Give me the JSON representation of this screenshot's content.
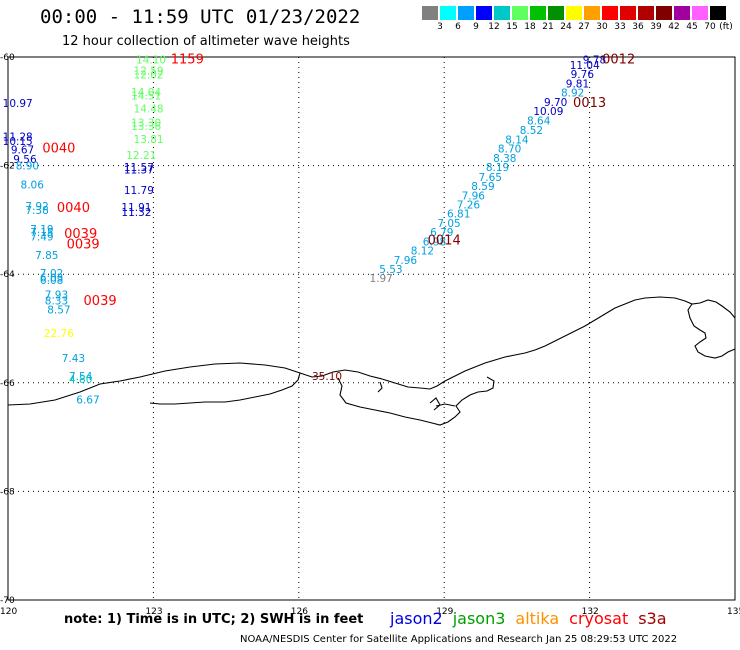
{
  "title": "00:00 - 11:59 UTC 01/23/2022",
  "subtitle": "12 hour collection of altimeter wave heights",
  "legend": {
    "unit": "(ft)",
    "bins": [
      {
        "color": "#808080",
        "label": ""
      },
      {
        "color": "#00ffff",
        "label": "3"
      },
      {
        "color": "#00a0ff",
        "label": "6"
      },
      {
        "color": "#0000ff",
        "label": "9"
      },
      {
        "color": "#00c8c8",
        "label": "12"
      },
      {
        "color": "#60ff60",
        "label": "15"
      },
      {
        "color": "#00c000",
        "label": "18"
      },
      {
        "color": "#009000",
        "label": "21"
      },
      {
        "color": "#ffff00",
        "label": "24"
      },
      {
        "color": "#ffa000",
        "label": "27"
      },
      {
        "color": "#ff0000",
        "label": "30"
      },
      {
        "color": "#e00000",
        "label": "33"
      },
      {
        "color": "#b00000",
        "label": "36"
      },
      {
        "color": "#800000",
        "label": "39"
      },
      {
        "color": "#a000a0",
        "label": "42"
      },
      {
        "color": "#ff60ff",
        "label": "45"
      },
      {
        "color": "#000000",
        "label": "70"
      }
    ]
  },
  "axes": {
    "lon_ticks": [
      "120",
      "123",
      "126",
      "129",
      "132",
      "135"
    ],
    "lat_ticks": [
      "-60",
      "-62",
      "-64",
      "-66",
      "-68",
      "-70"
    ]
  },
  "coast_label": "35.10",
  "tracks": [
    {
      "name": "left-track",
      "points": [
        {
          "t": "10.97",
          "lon": 120.2,
          "lat": -60.92,
          "c": "#0000c8"
        },
        {
          "t": "11.28",
          "lon": 120.2,
          "lat": -61.54,
          "c": "#0000c8"
        },
        {
          "t": "10.15",
          "lon": 120.2,
          "lat": -61.62,
          "c": "#0000c8"
        },
        {
          "t": "9.67",
          "lon": 120.3,
          "lat": -61.78,
          "c": "#0000c8"
        },
        {
          "t": "9.56",
          "lon": 120.35,
          "lat": -61.95,
          "c": "#0000c8"
        },
        {
          "t": "8.90",
          "lon": 120.4,
          "lat": -62.07,
          "c": "#00a0e0"
        },
        {
          "t": "8.06",
          "lon": 120.5,
          "lat": -62.42,
          "c": "#00a0e0"
        },
        {
          "t": "7.92",
          "lon": 120.6,
          "lat": -62.82,
          "c": "#00a0e0"
        },
        {
          "t": "7.38",
          "lon": 120.6,
          "lat": -62.89,
          "c": "#00a0e0"
        },
        {
          "t": "7.19",
          "lon": 120.7,
          "lat": -63.24,
          "c": "#00a0e0"
        },
        {
          "t": "7.15",
          "lon": 120.7,
          "lat": -63.3,
          "c": "#00a0e0"
        },
        {
          "t": "7.49",
          "lon": 120.7,
          "lat": -63.38,
          "c": "#00a0e0"
        },
        {
          "t": "7.85",
          "lon": 120.8,
          "lat": -63.72,
          "c": "#00a0e0"
        },
        {
          "t": "7.02",
          "lon": 120.9,
          "lat": -64.05,
          "c": "#00a0e0"
        },
        {
          "t": "6.03",
          "lon": 120.9,
          "lat": -64.13,
          "c": "#00a0e0"
        },
        {
          "t": "6.08",
          "lon": 120.9,
          "lat": -64.18,
          "c": "#00a0e0"
        },
        {
          "t": "7.93",
          "lon": 121.0,
          "lat": -64.45,
          "c": "#00a0e0"
        },
        {
          "t": "8.33",
          "lon": 121.0,
          "lat": -64.56,
          "c": "#00a0e0"
        },
        {
          "t": "8.57",
          "lon": 121.05,
          "lat": -64.72,
          "c": "#00a0e0"
        },
        {
          "t": "22.76",
          "lon": 121.05,
          "lat": -65.16,
          "c": "#ffff00"
        },
        {
          "t": "7.43",
          "lon": 121.35,
          "lat": -65.62,
          "c": "#00a0e0"
        },
        {
          "t": "7.54",
          "lon": 121.5,
          "lat": -65.95,
          "c": "#00a0e0"
        },
        {
          "t": "4.80",
          "lon": 121.5,
          "lat": -66.0,
          "c": "#00c8c8"
        },
        {
          "t": "6.67",
          "lon": 121.65,
          "lat": -66.38,
          "c": "#00a0e0"
        }
      ]
    },
    {
      "name": "center-left-track",
      "points": [
        {
          "t": "14.10",
          "lon": 122.95,
          "lat": -60.12,
          "c": "#60ff60"
        },
        {
          "t": "12.59",
          "lon": 122.9,
          "lat": -60.32,
          "c": "#60ff60"
        },
        {
          "t": "12.02",
          "lon": 122.9,
          "lat": -60.4,
          "c": "#60ff60"
        },
        {
          "t": "14.04",
          "lon": 122.85,
          "lat": -60.72,
          "c": "#60ff60"
        },
        {
          "t": "14.51",
          "lon": 122.85,
          "lat": -60.78,
          "c": "#60ff60"
        },
        {
          "t": "14.48",
          "lon": 122.9,
          "lat": -61.02,
          "c": "#60ff60"
        },
        {
          "t": "13.30",
          "lon": 122.85,
          "lat": -61.28,
          "c": "#60ff60"
        },
        {
          "t": "13.36",
          "lon": 122.85,
          "lat": -61.34,
          "c": "#60ff60"
        },
        {
          "t": "13.81",
          "lon": 122.9,
          "lat": -61.58,
          "c": "#60ff60"
        },
        {
          "t": "12.21",
          "lon": 122.75,
          "lat": -61.88,
          "c": "#60ff60"
        },
        {
          "t": "11.57",
          "lon": 122.7,
          "lat": -62.1,
          "c": "#0000c8"
        },
        {
          "t": "11.37",
          "lon": 122.7,
          "lat": -62.15,
          "c": "#0000c8"
        },
        {
          "t": "11.79",
          "lon": 122.7,
          "lat": -62.52,
          "c": "#0000c8"
        },
        {
          "t": "11.91",
          "lon": 122.65,
          "lat": -62.84,
          "c": "#0000c8"
        },
        {
          "t": "11.32",
          "lon": 122.65,
          "lat": -62.93,
          "c": "#0000c8"
        }
      ]
    },
    {
      "name": "right-track",
      "points": [
        {
          "t": "9.78",
          "lon": 132.1,
          "lat": -60.12,
          "c": "#0000c8"
        },
        {
          "t": "11.04",
          "lon": 131.9,
          "lat": -60.22,
          "c": "#0000c8"
        },
        {
          "t": "9.76",
          "lon": 131.85,
          "lat": -60.39,
          "c": "#0000c8"
        },
        {
          "t": "9.81",
          "lon": 131.75,
          "lat": -60.56,
          "c": "#0000c8"
        },
        {
          "t": "8.92",
          "lon": 131.65,
          "lat": -60.73,
          "c": "#00a0e0"
        },
        {
          "t": "9.70",
          "lon": 131.3,
          "lat": -60.9,
          "c": "#0000c8"
        },
        {
          "t": "10.09",
          "lon": 131.15,
          "lat": -61.07,
          "c": "#0000c8"
        },
        {
          "t": "8.64",
          "lon": 130.95,
          "lat": -61.24,
          "c": "#00a0e0"
        },
        {
          "t": "8.52",
          "lon": 130.8,
          "lat": -61.42,
          "c": "#00a0e0"
        },
        {
          "t": "8.14",
          "lon": 130.5,
          "lat": -61.59,
          "c": "#00a0e0"
        },
        {
          "t": "8.70",
          "lon": 130.35,
          "lat": -61.76,
          "c": "#00a0e0"
        },
        {
          "t": "8.38",
          "lon": 130.25,
          "lat": -61.93,
          "c": "#00a0e0"
        },
        {
          "t": "8.19",
          "lon": 130.1,
          "lat": -62.1,
          "c": "#00a0e0"
        },
        {
          "t": "7.65",
          "lon": 129.95,
          "lat": -62.28,
          "c": "#00a0e0"
        },
        {
          "t": "8.59",
          "lon": 129.8,
          "lat": -62.45,
          "c": "#00a0e0"
        },
        {
          "t": "7.96",
          "lon": 129.6,
          "lat": -62.62,
          "c": "#00a0e0"
        },
        {
          "t": "7.26",
          "lon": 129.5,
          "lat": -62.79,
          "c": "#00a0e0"
        },
        {
          "t": "6.81",
          "lon": 129.3,
          "lat": -62.96,
          "c": "#00a0e0"
        },
        {
          "t": "7.05",
          "lon": 129.1,
          "lat": -63.13,
          "c": "#00a0e0"
        },
        {
          "t": "6.79",
          "lon": 128.95,
          "lat": -63.3,
          "c": "#00a0e0"
        },
        {
          "t": "6.98",
          "lon": 128.8,
          "lat": -63.47,
          "c": "#00a0e0"
        },
        {
          "t": "8.12",
          "lon": 128.55,
          "lat": -63.64,
          "c": "#00a0e0"
        },
        {
          "t": "7.96",
          "lon": 128.2,
          "lat": -63.81,
          "c": "#00a0e0"
        },
        {
          "t": "5.53",
          "lon": 127.9,
          "lat": -63.98,
          "c": "#00a0e0"
        },
        {
          "t": "1.97",
          "lon": 127.7,
          "lat": -64.14,
          "c": "#808080"
        }
      ]
    }
  ],
  "time_labels": [
    {
      "t": "1159",
      "lon": 123.7,
      "lat": -60.12,
      "c": "#ff0000"
    },
    {
      "t": "0040",
      "lon": 121.05,
      "lat": -61.76,
      "c": "#ff0000"
    },
    {
      "t": "0040",
      "lon": 121.35,
      "lat": -62.85,
      "c": "#ff0000"
    },
    {
      "t": "0039",
      "lon": 121.5,
      "lat": -63.33,
      "c": "#ff0000"
    },
    {
      "t": "0039",
      "lon": 121.55,
      "lat": -63.53,
      "c": "#ff0000"
    },
    {
      "t": "0039",
      "lon": 121.9,
      "lat": -64.57,
      "c": "#ff0000"
    },
    {
      "t": "0012",
      "lon": 132.6,
      "lat": -60.12,
      "c": "#800000"
    },
    {
      "t": "0013",
      "lon": 132.0,
      "lat": -60.92,
      "c": "#800000"
    },
    {
      "t": "0014",
      "lon": 129.0,
      "lat": -63.45,
      "c": "#800000"
    }
  ],
  "footer": {
    "note": "note:  1) Time is in UTC;  2) SWH is in feet",
    "satellites": [
      {
        "name": "jason2",
        "color": "#0000e0"
      },
      {
        "name": "jason3",
        "color": "#00a000"
      },
      {
        "name": "altika",
        "color": "#ff9000"
      },
      {
        "name": "cryosat",
        "color": "#ff0000"
      },
      {
        "name": "s3a",
        "color": "#a00000"
      }
    ],
    "credit": "NOAA/NESDIS Center for Satellite Applications and Research      Jan 25 08:29:53 UTC 2022"
  }
}
